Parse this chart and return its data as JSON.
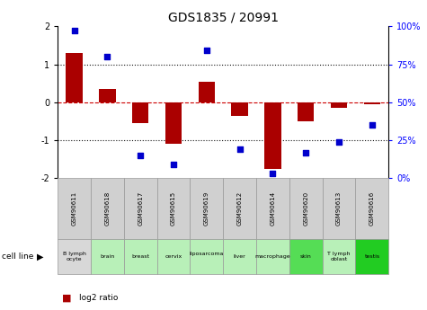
{
  "title": "GDS1835 / 20991",
  "gsm_labels": [
    "GSM90611",
    "GSM90618",
    "GSM90617",
    "GSM90615",
    "GSM90619",
    "GSM90612",
    "GSM90614",
    "GSM90620",
    "GSM90613",
    "GSM90616"
  ],
  "cell_labels": [
    "B lymph\nocyte",
    "brain",
    "breast",
    "cervix",
    "liposarcoma\n",
    "liver",
    "macrophage",
    "skin",
    "T lymph\noblast",
    "testis"
  ],
  "cell_bg_colors": [
    "#d8d8d8",
    "#b8f0b8",
    "#b8f0b8",
    "#b8f0b8",
    "#b8f0b8",
    "#b8f0b8",
    "#b8f0b8",
    "#55dd55",
    "#b8f0b8",
    "#22cc22"
  ],
  "log2_ratio": [
    1.3,
    0.35,
    -0.55,
    -1.1,
    0.55,
    -0.35,
    -1.75,
    -0.5,
    -0.15,
    -0.05
  ],
  "percentile_rank": [
    97,
    80,
    15,
    9,
    84,
    19,
    3,
    17,
    24,
    35
  ],
  "ylim_left": [
    -2,
    2
  ],
  "ylim_right": [
    0,
    100
  ],
  "yticks_left": [
    -2,
    -1,
    0,
    1,
    2
  ],
  "yticks_right": [
    0,
    25,
    50,
    75,
    100
  ],
  "yticklabels_right": [
    "0%",
    "25%",
    "50%",
    "75%",
    "100%"
  ],
  "bar_color": "#aa0000",
  "dot_color": "#0000cc",
  "zero_line_color": "#cc0000",
  "grid_color": "#111111",
  "bg_color": "#ffffff",
  "cell_line_label": "cell line"
}
